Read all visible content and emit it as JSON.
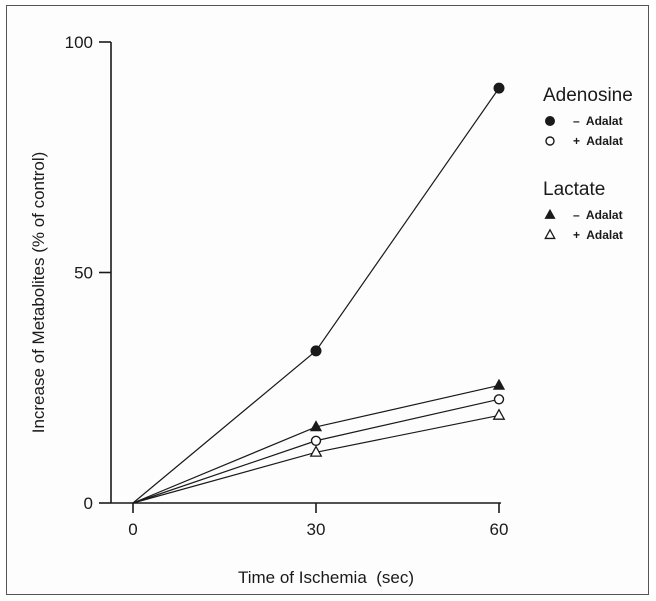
{
  "chart_data": {
    "type": "line",
    "xlabel": "Time of Ischemia  (sec)",
    "ylabel": "Increase of Metabolites (% of control)",
    "xlim": [
      0,
      60
    ],
    "ylim": [
      0,
      100
    ],
    "x_ticks": [
      0,
      30,
      60
    ],
    "x_tick_labels": [
      "0",
      "30",
      "60"
    ],
    "y_ticks": [
      0,
      50,
      100
    ],
    "y_tick_labels": [
      "0",
      "50",
      "100"
    ],
    "grid": false,
    "legend_position": "right",
    "legend_groups": [
      {
        "title": "Adenosine",
        "entries": [
          {
            "label": "–  Adalat",
            "series": 0
          },
          {
            "label": "+  Adalat",
            "series": 1
          }
        ]
      },
      {
        "title": "Lactate",
        "entries": [
          {
            "label": "–  Adalat",
            "series": 2
          },
          {
            "label": "+  Adalat",
            "series": 3
          }
        ]
      }
    ],
    "series": [
      {
        "marker": "filled-circle",
        "x": [
          0,
          30,
          60
        ],
        "y": [
          0,
          33,
          90
        ]
      },
      {
        "marker": "open-circle",
        "x": [
          0,
          30,
          60
        ],
        "y": [
          0,
          13.5,
          22.5
        ]
      },
      {
        "marker": "filled-triangle",
        "x": [
          0,
          30,
          60
        ],
        "y": [
          0,
          16.5,
          25.5
        ]
      },
      {
        "marker": "open-triangle",
        "x": [
          0,
          30,
          60
        ],
        "y": [
          0,
          11,
          19
        ]
      }
    ],
    "colors": {
      "ink": "#1a1a1a",
      "marker_fill": "#ffffff"
    }
  }
}
